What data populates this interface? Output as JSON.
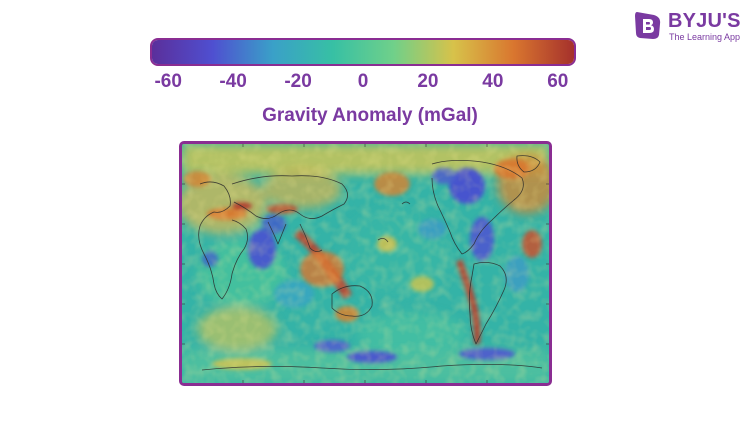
{
  "brand": {
    "logo_icon": "byjus-b-logo-icon",
    "name": "BYJU'S",
    "tagline": "The Learning App",
    "color": "#7a3aa1"
  },
  "colorbar": {
    "title": "Gravity Anomaly (mGal)",
    "range": [
      -65,
      65
    ],
    "ticks": [
      "-60",
      "-40",
      "-20",
      "0",
      "20",
      "40",
      "60"
    ],
    "tick_values": [
      -60,
      -40,
      -20,
      0,
      20,
      40,
      60
    ],
    "colormap": [
      "#5b2f9b",
      "#4f4fd0",
      "#3aa0c8",
      "#37c0a4",
      "#6fd08a",
      "#d7c24a",
      "#d9762f",
      "#a5312c"
    ],
    "border_color": "#8a2d92"
  },
  "map": {
    "name": "world-gravity-anomaly-map",
    "projection": "equirectangular",
    "border_color": "#8a2d92"
  }
}
